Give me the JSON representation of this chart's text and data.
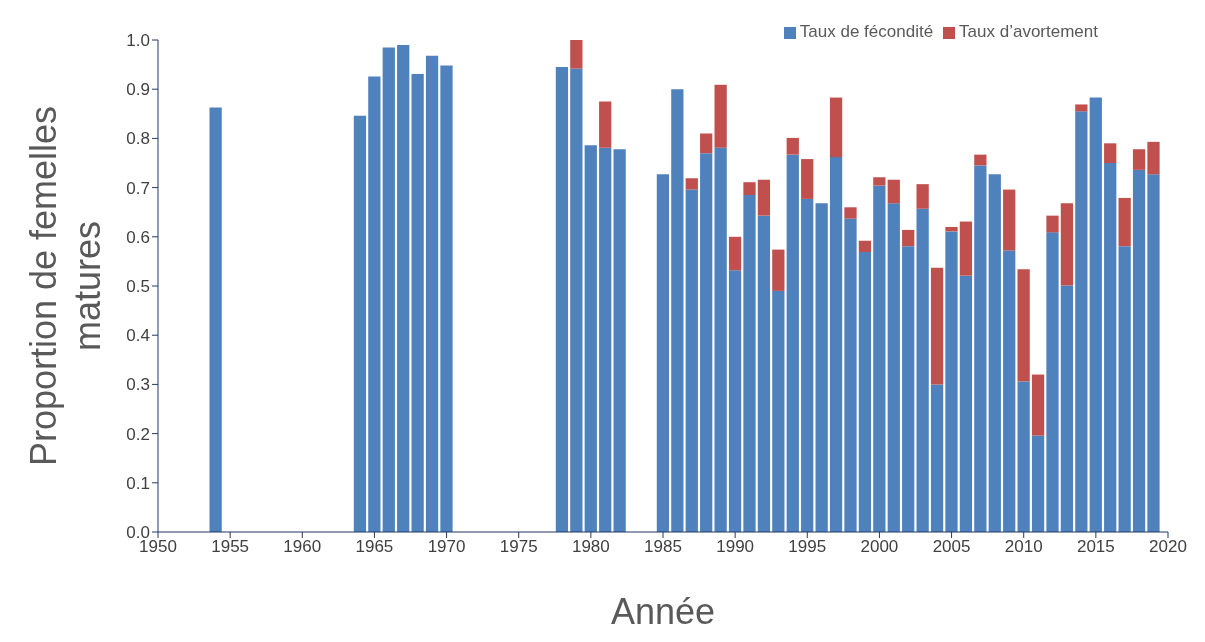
{
  "chart_data": {
    "type": "bar",
    "stacked": true,
    "xlabel": "Année",
    "ylabel": "Proportion de femelles matures",
    "x": [
      1954,
      1964,
      1965,
      1966,
      1967,
      1968,
      1969,
      1970,
      1978,
      1979,
      1980,
      1981,
      1982,
      1985,
      1986,
      1987,
      1988,
      1989,
      1990,
      1991,
      1992,
      1993,
      1994,
      1995,
      1996,
      1997,
      1998,
      1999,
      2000,
      2001,
      2002,
      2003,
      2004,
      2005,
      2006,
      2007,
      2008,
      2009,
      2010,
      2011,
      2012,
      2013,
      2014,
      2015,
      2016,
      2017,
      2018,
      2019
    ],
    "series": [
      {
        "name": "Taux de fécondité",
        "color": "#4f81bd",
        "values": [
          0.863,
          0.846,
          0.926,
          0.985,
          0.99,
          0.931,
          0.968,
          0.948,
          0.945,
          0.942,
          0.786,
          0.781,
          0.778,
          0.727,
          0.9,
          0.696,
          0.77,
          0.781,
          0.532,
          0.685,
          0.643,
          0.49,
          0.767,
          0.677,
          0.668,
          0.762,
          0.637,
          0.569,
          0.704,
          0.668,
          0.581,
          0.657,
          0.3,
          0.611,
          0.521,
          0.745,
          0.727,
          0.572,
          0.306,
          0.196,
          0.609,
          0.501,
          0.855,
          0.883,
          0.75,
          0.581,
          0.736,
          0.727
        ]
      },
      {
        "name": "Taux d’avortement",
        "color": "#c0504d",
        "values": [
          null,
          null,
          null,
          null,
          null,
          null,
          null,
          null,
          null,
          0.058,
          null,
          0.094,
          null,
          null,
          null,
          0.023,
          0.04,
          0.128,
          0.068,
          0.026,
          0.073,
          0.084,
          0.034,
          0.081,
          null,
          0.121,
          0.023,
          0.023,
          0.017,
          0.048,
          0.033,
          0.05,
          0.237,
          0.009,
          0.11,
          0.022,
          null,
          0.124,
          0.228,
          0.124,
          0.034,
          0.167,
          0.014,
          null,
          0.04,
          0.098,
          0.042,
          0.066
        ]
      }
    ],
    "xlim": [
      1950,
      2020
    ],
    "xticks": [
      1950,
      1955,
      1960,
      1965,
      1970,
      1975,
      1980,
      1985,
      1990,
      1995,
      2000,
      2005,
      2010,
      2015,
      2020
    ],
    "ylim": [
      0,
      1
    ],
    "yticks": [
      {
        "value": 0,
        "label": "0.0"
      },
      0.1,
      0.2,
      0.3,
      0.4,
      0.5,
      0.6,
      0.7,
      0.8,
      0.9,
      {
        "value": 1,
        "label": "1.0"
      }
    ],
    "legend": "top right"
  }
}
